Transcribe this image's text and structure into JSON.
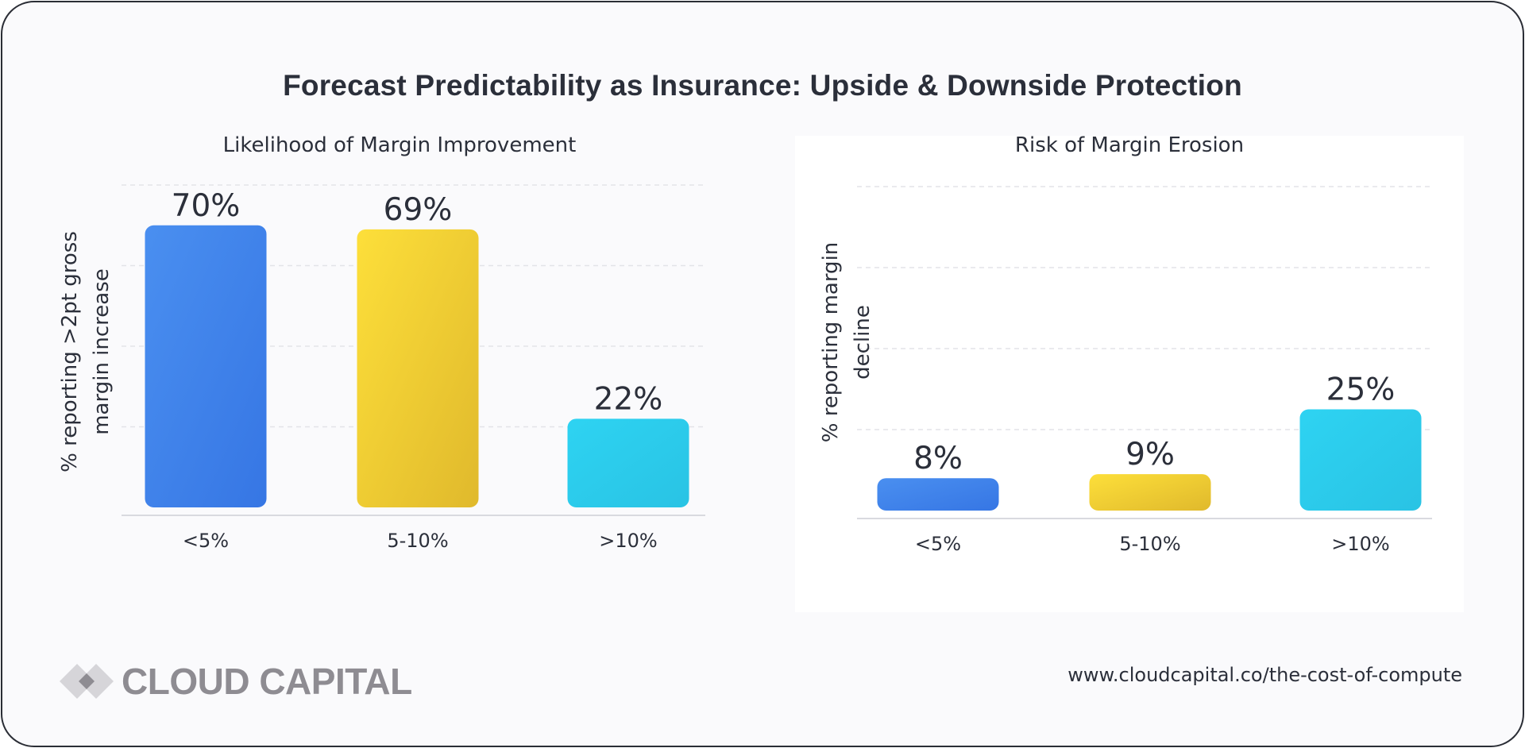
{
  "title": "Forecast Predictability as Insurance: Upside & Downside Protection",
  "chart_data": [
    {
      "type": "bar",
      "title": "Likelihood of Margin Improvement",
      "categories": [
        "<5%",
        "5-10%",
        ">10%"
      ],
      "values": [
        70,
        69,
        22
      ],
      "value_labels": [
        "70%",
        "69%",
        "22%"
      ],
      "ylabel_lines": [
        "% reporting >2pt gross",
        "margin increase"
      ],
      "xlabel": "",
      "ylim": [
        0,
        80
      ],
      "gridlines": [
        20,
        40,
        60,
        80
      ],
      "grid": true
    },
    {
      "type": "bar",
      "title": "Risk of Margin Erosion",
      "categories": [
        "<5%",
        "5-10%",
        ">10%"
      ],
      "values": [
        8,
        9,
        25
      ],
      "value_labels": [
        "8%",
        "9%",
        "25%"
      ],
      "ylabel_lines": [
        "% reporting margin",
        "decline"
      ],
      "xlabel": "",
      "ylim": [
        0,
        80
      ],
      "gridlines": [
        20,
        40,
        60,
        80
      ],
      "grid": true
    }
  ],
  "colors": {
    "bar_1_start": "#4a8ff0",
    "bar_1_end": "#3676e4",
    "bar_2_start": "#fddf3a",
    "bar_2_end": "#e0b92c",
    "bar_3_start": "#2ed3f2",
    "bar_3_end": "#29c3e4",
    "grid": "#e3e4e8",
    "axis": "#d9dadf",
    "text": "#2b2f3a",
    "logo": "#8e8c92"
  },
  "footer": {
    "brand": "CLOUD CAPITAL",
    "url": "www.cloudcapital.co/the-cost-of-compute"
  }
}
